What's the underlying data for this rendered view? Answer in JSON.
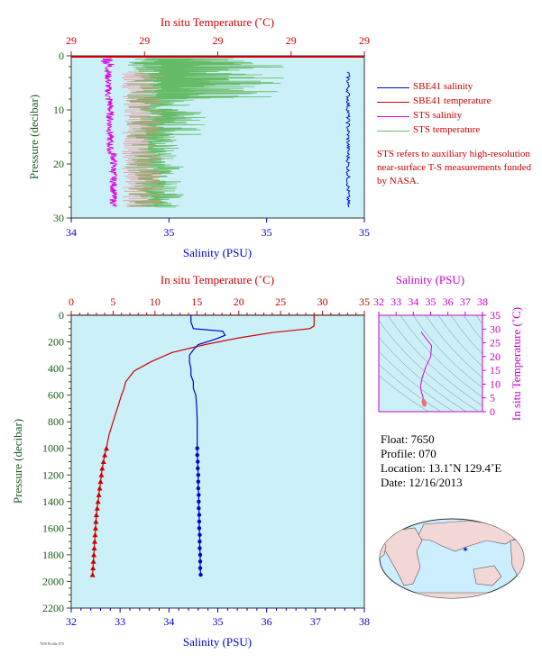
{
  "top": {
    "top_axis_label": "In situ Temperature (˚C)",
    "top_ticks": [
      "29",
      "29",
      "29",
      "29",
      "29"
    ],
    "bottom_axis_label": "Salinity (PSU)",
    "bottom_ticks": [
      "34",
      "35",
      "35",
      "35"
    ],
    "y_axis_label": "Pressure (decibar)",
    "y_ticks": [
      "0",
      "10",
      "20",
      "30"
    ],
    "legend": [
      {
        "label": "SBE41 salinity",
        "color": "#0000cc"
      },
      {
        "label": "SBE41 temperature",
        "color": "#cc0000"
      },
      {
        "label": "STS salinity",
        "color": "#dd00dd"
      },
      {
        "label": "STS temperature",
        "color": "#66bb66"
      }
    ],
    "note": "STS refers to auxiliary high-resolution near-surface T-S measurements funded by NASA."
  },
  "main": {
    "top_axis_label": "In situ Temperature (˚C)",
    "top_ticks": [
      "0",
      "5",
      "10",
      "15",
      "20",
      "25",
      "30",
      "35"
    ],
    "bottom_axis_label": "Salinity (PSU)",
    "bottom_ticks": [
      "32",
      "33",
      "34",
      "35",
      "36",
      "37",
      "38"
    ],
    "y_axis_label": "Pressure (decibar)",
    "y_ticks": [
      "0",
      "200",
      "400",
      "600",
      "800",
      "1000",
      "1200",
      "1400",
      "1600",
      "1800",
      "2000",
      "2200"
    ]
  },
  "ts": {
    "top_axis_label": "Salinity (PSU)",
    "top_ticks": [
      "32",
      "33",
      "34",
      "35",
      "36",
      "37",
      "38"
    ],
    "right_axis_label": "In situ Temperature (˚C)",
    "right_ticks": [
      "0",
      "5",
      "10",
      "15",
      "20",
      "25",
      "30",
      "35"
    ]
  },
  "info": {
    "float": "Float:  7650",
    "profile": "Profile:  070",
    "location": "Location:  13.1˚N  129.4˚E",
    "date": "Date:  12/16/2013"
  },
  "credit": "7650 Profile 070",
  "chart_data": [
    {
      "type": "line",
      "title": "",
      "xlabel": "Salinity (PSU)",
      "x2label": "In situ Temperature (˚C)",
      "ylabel": "Pressure (decibar)",
      "ylim": [
        30,
        0
      ],
      "series": [
        {
          "name": "SBE41 salinity",
          "pressure": [
            3,
            6,
            10,
            14,
            18,
            22,
            26,
            28
          ],
          "values": [
            34.98,
            34.98,
            34.98,
            34.98,
            34.98,
            34.98,
            34.98,
            34.98
          ]
        },
        {
          "name": "SBE41 temperature",
          "pressure": [
            0,
            30
          ],
          "values": [
            29,
            29
          ]
        },
        {
          "name": "STS salinity",
          "pressure": [
            0.5,
            3,
            6,
            10,
            14,
            18,
            22,
            26,
            28
          ],
          "values": [
            34.5,
            34.47,
            34.52,
            34.52,
            34.48,
            34.47,
            34.47,
            34.47,
            34.47
          ]
        },
        {
          "name": "STS temperature",
          "pressure": [
            0.5,
            3,
            6,
            10,
            14,
            18,
            22,
            26,
            28
          ],
          "values": [
            29,
            29,
            29,
            29,
            29,
            29,
            29,
            29,
            29
          ]
        }
      ]
    },
    {
      "type": "line",
      "title": "",
      "xlabel": "Salinity (PSU)",
      "xlim": [
        32,
        38
      ],
      "x2label": "In situ Temperature (˚C)",
      "x2lim": [
        0,
        35
      ],
      "ylabel": "Pressure (decibar)",
      "ylim": [
        2200,
        0
      ],
      "series": [
        {
          "name": "Salinity",
          "color": "#0000cc",
          "pressure": [
            0,
            50,
            100,
            120,
            150,
            180,
            220,
            260,
            300,
            350,
            400,
            450,
            500,
            550,
            600,
            700,
            800,
            900,
            1000,
            1050,
            1100,
            1150,
            1200,
            1250,
            1300,
            1350,
            1400,
            1450,
            1500,
            1550,
            1600,
            1650,
            1700,
            1750,
            1800,
            1850,
            1900,
            1950
          ],
          "values": [
            34.45,
            34.45,
            34.5,
            35.1,
            35.15,
            34.95,
            34.6,
            34.5,
            34.42,
            34.42,
            34.45,
            34.45,
            34.5,
            34.5,
            34.55,
            34.57,
            34.58,
            34.58,
            34.58,
            34.58,
            34.59,
            34.59,
            34.6,
            34.6,
            34.6,
            34.61,
            34.61,
            34.61,
            34.62,
            34.62,
            34.62,
            34.63,
            34.63,
            34.63,
            34.64,
            34.64,
            34.64,
            34.65
          ]
        },
        {
          "name": "Temperature",
          "color": "#cc0000",
          "pressure": [
            0,
            80,
            100,
            130,
            170,
            220,
            280,
            350,
            420,
            500,
            550,
            600,
            700,
            800,
            900,
            1000,
            1050,
            1100,
            1150,
            1200,
            1250,
            1300,
            1350,
            1400,
            1450,
            1500,
            1550,
            1600,
            1650,
            1700,
            1750,
            1800,
            1850,
            1900,
            1950
          ],
          "values": [
            29,
            29,
            28.5,
            24,
            20,
            16,
            12,
            9.5,
            7.5,
            6.5,
            6.3,
            6,
            5.5,
            5,
            4.5,
            4.2,
            4.0,
            3.85,
            3.7,
            3.6,
            3.5,
            3.4,
            3.3,
            3.2,
            3.1,
            3.0,
            2.95,
            2.9,
            2.85,
            2.8,
            2.75,
            2.7,
            2.65,
            2.6,
            2.55
          ]
        }
      ]
    },
    {
      "type": "scatter",
      "title": "",
      "xlabel": "Salinity (PSU)",
      "xlim": [
        32,
        38
      ],
      "ylabel": "In situ Temperature (˚C)",
      "ylim": [
        0,
        35
      ],
      "series": [
        {
          "name": "T-S",
          "color": "#dd00dd",
          "x": [
            34.45,
            34.5,
            35.05,
            35.0,
            34.7,
            34.5,
            34.42,
            34.45,
            34.5,
            34.55,
            34.58,
            34.6,
            34.62,
            34.64
          ],
          "y": [
            29,
            28.5,
            24,
            20,
            16,
            12,
            9.5,
            7.5,
            6.5,
            5.5,
            4.5,
            3.8,
            3.2,
            2.6
          ]
        }
      ]
    }
  ]
}
